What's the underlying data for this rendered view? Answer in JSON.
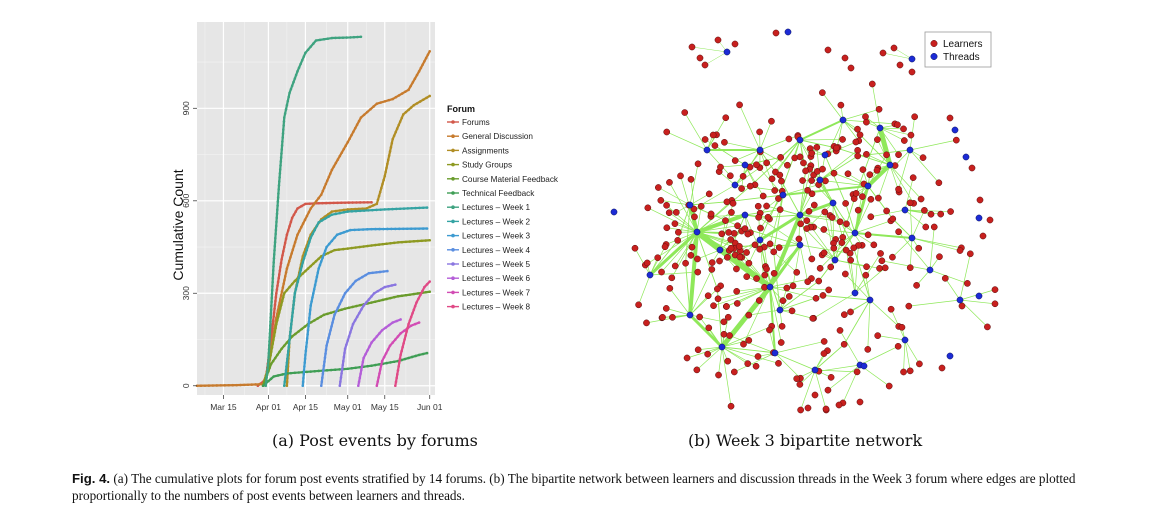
{
  "chart_data": [
    {
      "type": "line",
      "ylabel": "Cumulative Count",
      "xlabel": "",
      "x_ticks": [
        "Mar 15",
        "Apr 01",
        "Apr 15",
        "May 01",
        "May 15",
        "Jun 01"
      ],
      "y_ticks": [
        "0",
        "300",
        "600",
        "900"
      ],
      "ylim": [
        -30,
        1180
      ],
      "xlim": [
        "2013-03-05",
        "2013-06-03"
      ],
      "grid": true,
      "legend": {
        "title": "Forum",
        "placement": "right"
      },
      "series": [
        {
          "name": "Forums",
          "color": "#d2584a",
          "points": [
            [
              "2013-03-28",
              0
            ],
            [
              "2013-03-31",
              20
            ],
            [
              "2013-04-02",
              150
            ],
            [
              "2013-04-04",
              300
            ],
            [
              "2013-04-06",
              410
            ],
            [
              "2013-04-08",
              490
            ],
            [
              "2013-04-10",
              545
            ],
            [
              "2013-04-12",
              575
            ],
            [
              "2013-04-15",
              590
            ],
            [
              "2013-04-20",
              592
            ],
            [
              "2013-04-30",
              594
            ],
            [
              "2013-05-10",
              595
            ]
          ]
        },
        {
          "name": "General Discussion",
          "color": "#c77b2e",
          "points": [
            [
              "2013-03-05",
              0
            ],
            [
              "2013-03-20",
              2
            ],
            [
              "2013-03-30",
              5
            ],
            [
              "2013-04-01",
              60
            ],
            [
              "2013-04-04",
              220
            ],
            [
              "2013-04-08",
              380
            ],
            [
              "2013-04-12",
              490
            ],
            [
              "2013-04-17",
              575
            ],
            [
              "2013-04-21",
              620
            ],
            [
              "2013-04-25",
              700
            ],
            [
              "2013-05-01",
              790
            ],
            [
              "2013-05-06",
              870
            ],
            [
              "2013-05-12",
              915
            ],
            [
              "2013-05-18",
              930
            ],
            [
              "2013-05-24",
              960
            ],
            [
              "2013-05-28",
              1020
            ],
            [
              "2013-06-01",
              1085
            ]
          ]
        },
        {
          "name": "Assignments",
          "color": "#b18e25",
          "points": [
            [
              "2013-04-08",
              0
            ],
            [
              "2013-04-09",
              150
            ],
            [
              "2013-04-11",
              300
            ],
            [
              "2013-04-14",
              420
            ],
            [
              "2013-04-17",
              490
            ],
            [
              "2013-04-21",
              540
            ],
            [
              "2013-04-25",
              565
            ],
            [
              "2013-05-01",
              572
            ],
            [
              "2013-05-08",
              575
            ],
            [
              "2013-05-12",
              590
            ],
            [
              "2013-05-15",
              680
            ],
            [
              "2013-05-18",
              800
            ],
            [
              "2013-05-22",
              880
            ],
            [
              "2013-05-26",
              910
            ],
            [
              "2013-06-01",
              940
            ]
          ]
        },
        {
          "name": "Study Groups",
          "color": "#8e9a22",
          "points": [
            [
              "2013-03-30",
              0
            ],
            [
              "2013-04-01",
              60
            ],
            [
              "2013-04-04",
              200
            ],
            [
              "2013-04-07",
              300
            ],
            [
              "2013-04-11",
              340
            ],
            [
              "2013-04-16",
              380
            ],
            [
              "2013-04-21",
              420
            ],
            [
              "2013-04-26",
              440
            ],
            [
              "2013-05-01",
              445
            ],
            [
              "2013-05-10",
              455
            ],
            [
              "2013-05-20",
              465
            ],
            [
              "2013-06-01",
              472
            ]
          ]
        },
        {
          "name": "Course Material Feedback",
          "color": "#6a9c2c",
          "points": [
            [
              "2013-03-30",
              0
            ],
            [
              "2013-04-02",
              70
            ],
            [
              "2013-04-06",
              120
            ],
            [
              "2013-04-10",
              160
            ],
            [
              "2013-04-16",
              200
            ],
            [
              "2013-04-22",
              230
            ],
            [
              "2013-04-30",
              250
            ],
            [
              "2013-05-10",
              270
            ],
            [
              "2013-05-20",
              290
            ],
            [
              "2013-06-01",
              305
            ]
          ]
        },
        {
          "name": "Technical Feedback",
          "color": "#3f9e55",
          "points": [
            [
              "2013-03-30",
              0
            ],
            [
              "2013-04-03",
              30
            ],
            [
              "2013-04-08",
              40
            ],
            [
              "2013-04-20",
              48
            ],
            [
              "2013-05-01",
              55
            ],
            [
              "2013-05-10",
              65
            ],
            [
              "2013-05-20",
              80
            ],
            [
              "2013-05-28",
              100
            ],
            [
              "2013-05-31",
              106
            ]
          ]
        },
        {
          "name": "Lectures – Week 1",
          "color": "#3fa380",
          "points": [
            [
              "2013-03-31",
              0
            ],
            [
              "2013-04-01",
              80
            ],
            [
              "2013-04-03",
              400
            ],
            [
              "2013-04-05",
              650
            ],
            [
              "2013-04-07",
              870
            ],
            [
              "2013-04-09",
              950
            ],
            [
              "2013-04-12",
              1020
            ],
            [
              "2013-04-15",
              1080
            ],
            [
              "2013-04-19",
              1120
            ],
            [
              "2013-04-25",
              1128
            ],
            [
              "2013-05-02",
              1130
            ],
            [
              "2013-05-06",
              1132
            ]
          ]
        },
        {
          "name": "Lectures – Week 2",
          "color": "#34a3a3",
          "points": [
            [
              "2013-04-07",
              0
            ],
            [
              "2013-04-09",
              150
            ],
            [
              "2013-04-11",
              300
            ],
            [
              "2013-04-14",
              400
            ],
            [
              "2013-04-17",
              480
            ],
            [
              "2013-04-20",
              530
            ],
            [
              "2013-04-25",
              555
            ],
            [
              "2013-05-01",
              565
            ],
            [
              "2013-05-15",
              572
            ],
            [
              "2013-05-31",
              578
            ]
          ]
        },
        {
          "name": "Lectures – Week 3",
          "color": "#3d9bd1",
          "points": [
            [
              "2013-04-14",
              0
            ],
            [
              "2013-04-15",
              100
            ],
            [
              "2013-04-17",
              260
            ],
            [
              "2013-04-20",
              380
            ],
            [
              "2013-04-23",
              450
            ],
            [
              "2013-04-27",
              490
            ],
            [
              "2013-05-02",
              505
            ],
            [
              "2013-05-10",
              508
            ],
            [
              "2013-05-31",
              510
            ]
          ]
        },
        {
          "name": "Lectures – Week 4",
          "color": "#5a8ee0",
          "points": [
            [
              "2013-04-21",
              0
            ],
            [
              "2013-04-23",
              130
            ],
            [
              "2013-04-26",
              230
            ],
            [
              "2013-04-30",
              300
            ],
            [
              "2013-05-04",
              340
            ],
            [
              "2013-05-09",
              365
            ],
            [
              "2013-05-16",
              372
            ]
          ]
        },
        {
          "name": "Lectures – Week 5",
          "color": "#8a76e0",
          "points": [
            [
              "2013-04-28",
              0
            ],
            [
              "2013-04-30",
              120
            ],
            [
              "2013-05-03",
              200
            ],
            [
              "2013-05-07",
              260
            ],
            [
              "2013-05-11",
              300
            ],
            [
              "2013-05-15",
              320
            ],
            [
              "2013-05-19",
              328
            ]
          ]
        },
        {
          "name": "Lectures – Week 6",
          "color": "#b45ed8",
          "points": [
            [
              "2013-05-05",
              0
            ],
            [
              "2013-05-07",
              90
            ],
            [
              "2013-05-10",
              140
            ],
            [
              "2013-05-14",
              180
            ],
            [
              "2013-05-18",
              205
            ],
            [
              "2013-05-21",
              215
            ]
          ]
        },
        {
          "name": "Lectures – Week 7",
          "color": "#d24cb4",
          "points": [
            [
              "2013-05-12",
              0
            ],
            [
              "2013-05-14",
              80
            ],
            [
              "2013-05-17",
              130
            ],
            [
              "2013-05-21",
              170
            ],
            [
              "2013-05-25",
              195
            ],
            [
              "2013-05-28",
              205
            ]
          ]
        },
        {
          "name": "Lectures  – Week 8",
          "color": "#e04a86",
          "points": [
            [
              "2013-05-19",
              0
            ],
            [
              "2013-05-21",
              100
            ],
            [
              "2013-05-24",
              200
            ],
            [
              "2013-05-27",
              270
            ],
            [
              "2013-05-30",
              320
            ],
            [
              "2013-06-01",
              338
            ]
          ]
        }
      ]
    },
    {
      "type": "network",
      "legend": [
        {
          "label": "Learners",
          "color": "#c8201e"
        },
        {
          "label": "Threads",
          "color": "#1c2bd6"
        }
      ],
      "edge_color": "#8fe85a"
    }
  ],
  "captions": {
    "a": "(a)  Post events by forums",
    "b": "(b)  Week 3 bipartite network"
  },
  "figure_caption": {
    "label": "Fig. 4.",
    "text": " (a) The cumulative plots for forum post events stratified by 14 forums. (b) The bipartite network between learners and discussion threads in the Week 3 forum where edges are plotted proportionally to the numbers of post events between learners and threads."
  }
}
